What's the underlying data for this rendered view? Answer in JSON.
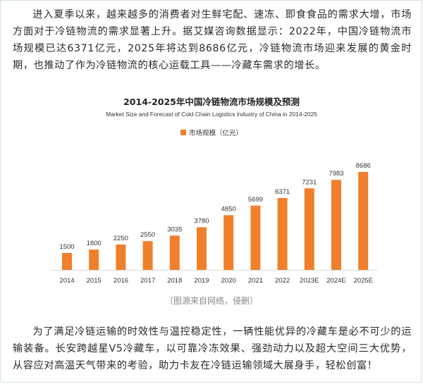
{
  "article": {
    "paragraph1": "进入夏季以来，越来越多的消费者对生鲜宅配、速冻、即食食品的需求大增，市场方面对于冷链物流的需求显著上升。据艾媒咨询数据显示：2022年，中国冷链物流市场规模已达6371亿元，2025年将达到8686亿元，冷链物流市场迎来发展的黄金时期，也推动了作为冷链物流的核心运载工具——冷藏车需求的增长。",
    "image_caption": "（图源来自网络，侵删）",
    "paragraph2": "为了满足冷链运输的时效性与温控稳定性，一辆性能优异的冷藏车是必不可少的运输装备。长安跨越星V5冷藏车，以可靠冷冻效果、强劲动力以及超大空间三大优势，从容应对高温天气带来的考验，助力卡友在冷链运输领域大展身手，轻松创富！"
  },
  "chart_data": {
    "type": "bar",
    "title": "2014-2025年中国冷链物流市场规模及预测",
    "subtitle": "Market Size and Forecast of Cold Chain Logistics industry of China in 2014-2025",
    "categories": [
      "2014",
      "2015",
      "2016",
      "2017",
      "2018",
      "2019",
      "2020",
      "2021",
      "2022",
      "2023E",
      "2024E",
      "2025E"
    ],
    "series": [
      {
        "name": "市场规模（亿元）",
        "values": [
          1500,
          1800,
          2250,
          2550,
          3035,
          3780,
          4850,
          5699,
          6371,
          7231,
          7983,
          8686
        ],
        "color": "#f07f2b"
      }
    ],
    "xlabel": "",
    "ylabel": "",
    "ylim": [
      0,
      8686
    ],
    "grid": false,
    "legend_position": "top-center",
    "data_labels": true
  }
}
